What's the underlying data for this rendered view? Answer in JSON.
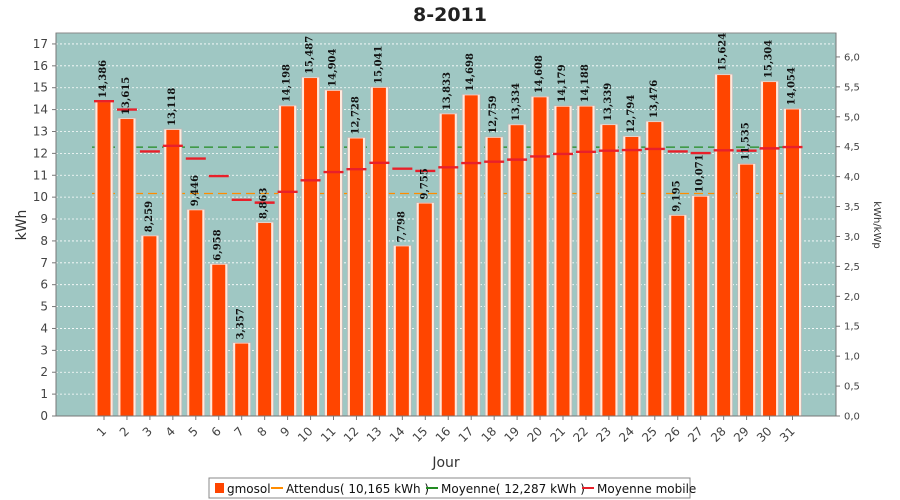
{
  "chart_data": {
    "type": "bar",
    "title": "8-2011",
    "xlabel": "Jour",
    "ylabel": "kWh",
    "ylabel_right": "kWh/kWp",
    "ylim": [
      0,
      17.5
    ],
    "ylim_right": [
      0,
      6.4
    ],
    "yticks": [
      "0",
      "1",
      "2",
      "3",
      "4",
      "5",
      "6",
      "7",
      "8",
      "9",
      "10",
      "11",
      "12",
      "13",
      "14",
      "15",
      "16",
      "17"
    ],
    "yticks_right": [
      "0,0",
      "0,5",
      "1,0",
      "1,5",
      "2,0",
      "2,5",
      "3,0",
      "3,5",
      "4,0",
      "4,5",
      "5,0",
      "5,5",
      "6,0"
    ],
    "yticks_right_values": [
      0,
      0.5,
      1,
      1.5,
      2,
      2.5,
      3,
      3.5,
      4,
      4.5,
      5,
      5.5,
      6
    ],
    "categories": [
      "1",
      "2",
      "3",
      "4",
      "5",
      "6",
      "7",
      "8",
      "9",
      "10",
      "11",
      "12",
      "13",
      "14",
      "15",
      "16",
      "17",
      "18",
      "19",
      "20",
      "21",
      "22",
      "23",
      "24",
      "25",
      "26",
      "27",
      "28",
      "29",
      "30",
      "31"
    ],
    "series": [
      {
        "name": "gmosol",
        "color": "#ff4500",
        "values": [
          14.386,
          13.615,
          8.259,
          13.118,
          9.446,
          6.958,
          3.357,
          8.863,
          14.198,
          15.487,
          14.904,
          12.728,
          15.041,
          7.798,
          9.755,
          13.833,
          14.698,
          12.759,
          13.334,
          14.608,
          14.179,
          14.188,
          13.339,
          12.794,
          13.476,
          9.195,
          10.071,
          15.624,
          11.535,
          15.304,
          14.054
        ],
        "labels": [
          "14,386",
          "13,615",
          "8,259",
          "13,118",
          "9,446",
          "6,958",
          "3,357",
          "8,863",
          "14,198",
          "15,487",
          "14,904",
          "12,728",
          "15,041",
          "7,798",
          "9,755",
          "13,833",
          "14,698",
          "12,759",
          "13,334",
          "14,608",
          "14,179",
          "14,188",
          "13,339",
          "12,794",
          "13,476",
          "9,195",
          "10,071",
          "15,624",
          "11,535",
          "15,304",
          "14,054"
        ]
      },
      {
        "name": "Moyenne mobile",
        "color": "#e8202a",
        "values": [
          14.386,
          14.0,
          12.087,
          12.345,
          11.765,
          10.964,
          9.877,
          9.75,
          10.244,
          10.768,
          11.144,
          11.276,
          11.567,
          11.298,
          11.196,
          11.362,
          11.558,
          11.621,
          11.714,
          11.859,
          11.972,
          12.073,
          12.123,
          12.151,
          12.204,
          12.088,
          12.013,
          12.142,
          12.121,
          12.228,
          12.287
        ]
      }
    ],
    "reference_lines": [
      {
        "name": "Attendus( 10,165 kWh )",
        "value": 10.165,
        "color": "#ff8c00"
      },
      {
        "name": "Moyenne( 12,287 kWh )",
        "value": 12.287,
        "color": "#228b22"
      }
    ],
    "legend": {
      "placement": "bottom",
      "items": [
        {
          "label": "gmosol",
          "color": "#ff4500",
          "symbol": "square"
        },
        {
          "label": "Attendus( 10,165 kWh )",
          "color": "#ff8c00",
          "symbol": "line"
        },
        {
          "label": "Moyenne( 12,287 kWh )",
          "color": "#228b22",
          "symbol": "line"
        },
        {
          "label": "Moyenne mobile",
          "color": "#e8202a",
          "symbol": "line"
        }
      ]
    },
    "plot_background": "#9fc7c3",
    "grid": true
  }
}
